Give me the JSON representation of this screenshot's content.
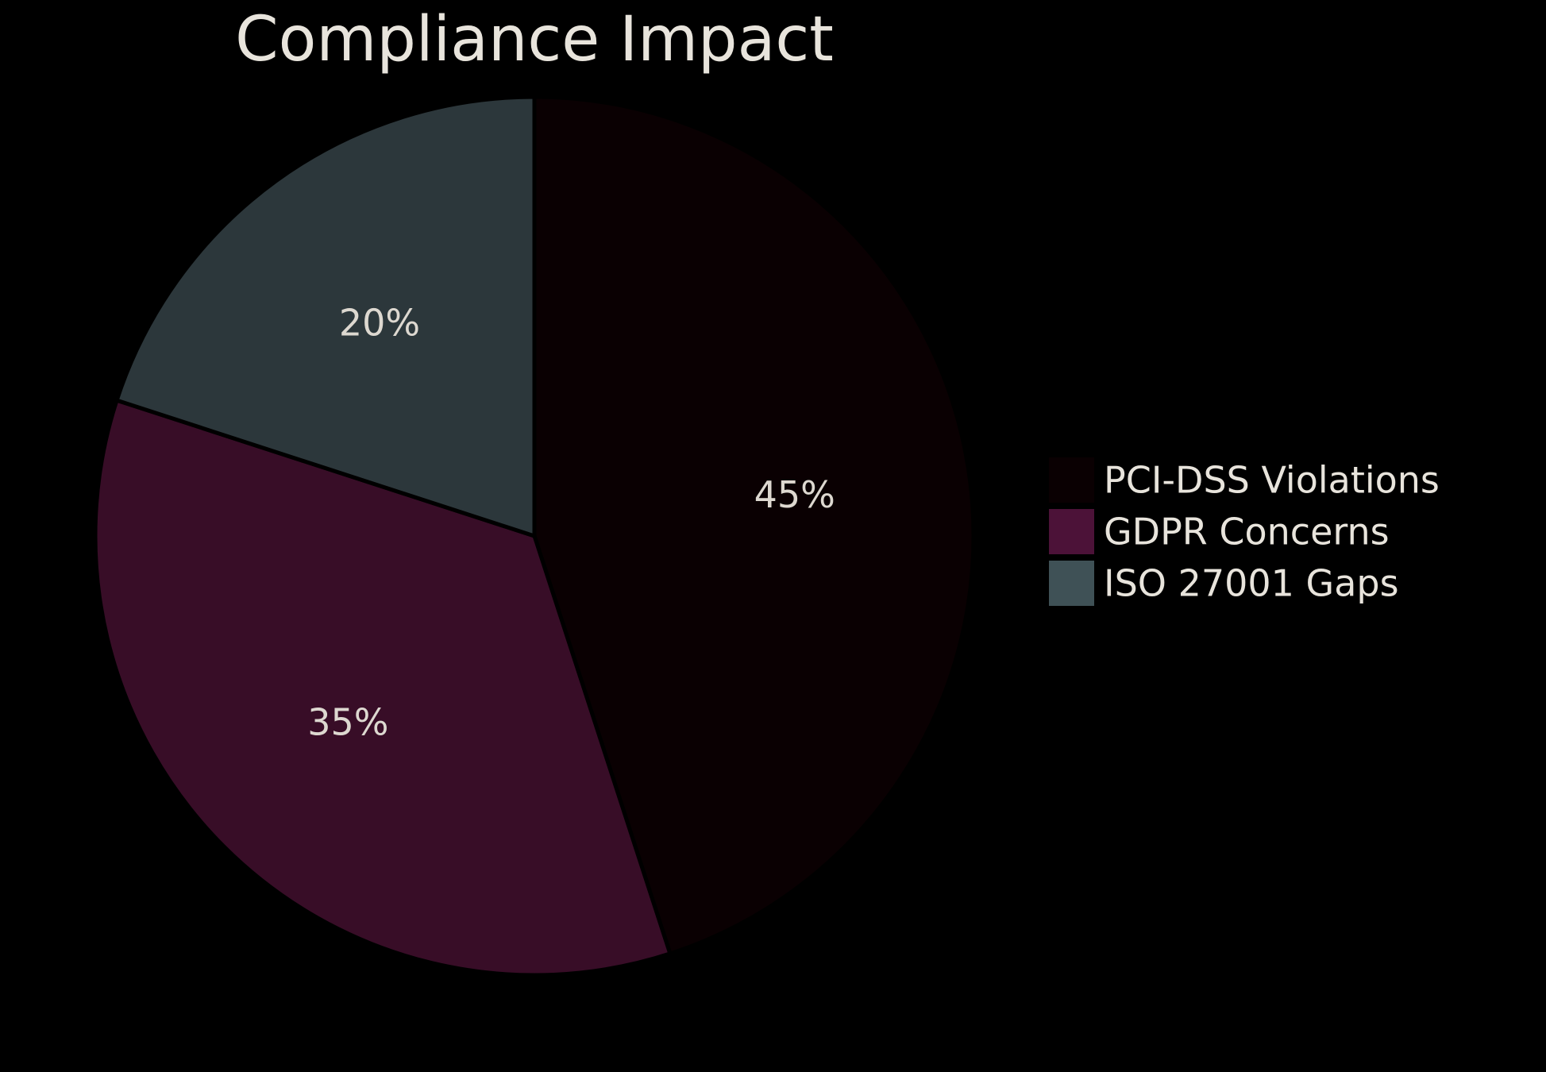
{
  "chart_data": {
    "type": "pie",
    "title": "Compliance Impact",
    "slices": [
      {
        "label": "PCI-DSS Violations",
        "value": 45,
        "display": "45%",
        "color": "#0a0002",
        "legend_color": "#0a0002"
      },
      {
        "label": "GDPR Concerns",
        "value": 35,
        "display": "35%",
        "color": "#380d27",
        "legend_color": "#4c1238"
      },
      {
        "label": "ISO 27001 Gaps",
        "value": 20,
        "display": "20%",
        "color": "#2c373b",
        "legend_color": "#3f5156"
      }
    ],
    "start_angle": "12 o'clock",
    "direction": "clockwise",
    "legend_position": "right"
  }
}
